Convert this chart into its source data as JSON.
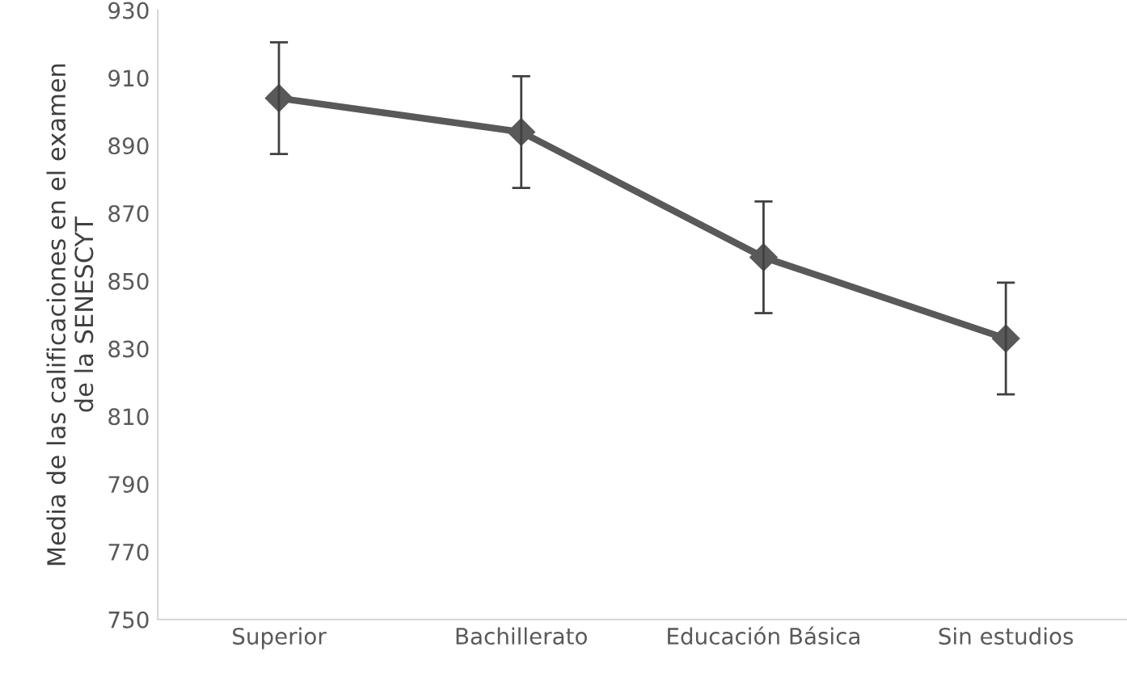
{
  "chart_data": {
    "type": "line",
    "ylabel": "Media de las calificaciones en el examen\nde la SENESCYT",
    "categories": [
      "Superior",
      "Bachillerato",
      "Educación Básica",
      "Sin estudios"
    ],
    "series": [
      {
        "color": "#595959",
        "values": [
          904,
          894,
          857,
          833
        ],
        "errors": [
          16.5,
          16.5,
          16.5,
          16.5
        ]
      }
    ],
    "ylim": [
      750,
      930
    ],
    "yticks": [
      750,
      770,
      790,
      810,
      830,
      850,
      870,
      890,
      910,
      930
    ],
    "marker": "diamond",
    "line_style": "solid",
    "grid": false,
    "legend": false
  }
}
